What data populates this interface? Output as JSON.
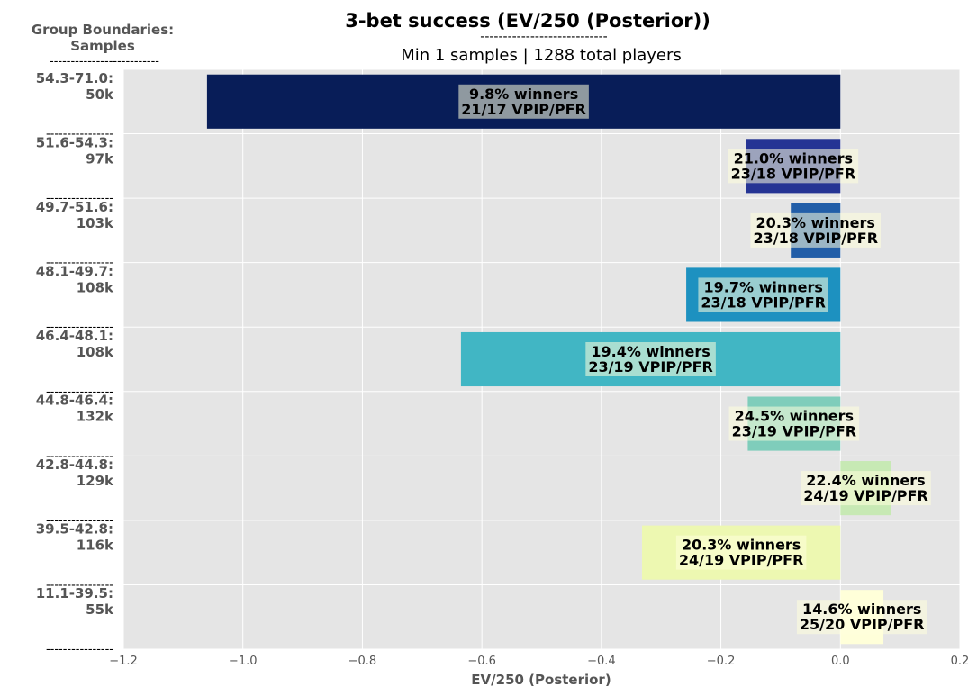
{
  "chart_data": {
    "type": "bar",
    "orientation": "horizontal",
    "title": "3-bet success (EV/250 (Posterior))",
    "title_separator": "----------------------------",
    "subtitle": "Min 1 samples | 1288 total players",
    "ylabel_header": "Group Boundaries:",
    "ylabel_header2": "Samples",
    "ylabel_separator": "--------------------------",
    "row_separator": "----------------",
    "xlabel": "EV/250 (Posterior)",
    "xlim": [
      -1.2,
      0.2
    ],
    "xticks": [
      "−1.2",
      "−1.0",
      "−0.8",
      "−0.6",
      "−0.4",
      "−0.2",
      "0.0",
      "0.2"
    ],
    "xtick_values": [
      -1.2,
      -1.0,
      -0.8,
      -0.6,
      -0.4,
      -0.2,
      0.0,
      0.2
    ],
    "grid": true,
    "categories": [
      {
        "range": "54.3-71.0:",
        "samples": "50k"
      },
      {
        "range": "51.6-54.3:",
        "samples": "97k"
      },
      {
        "range": "49.7-51.6:",
        "samples": "103k"
      },
      {
        "range": "48.1-49.7:",
        "samples": "108k"
      },
      {
        "range": "46.4-48.1:",
        "samples": "108k"
      },
      {
        "range": "44.8-46.4:",
        "samples": "132k"
      },
      {
        "range": "42.8-44.8:",
        "samples": "129k"
      },
      {
        "range": "39.5-42.8:",
        "samples": "116k"
      },
      {
        "range": "11.1-39.5:",
        "samples": "55k"
      }
    ],
    "values": [
      -1.06,
      -0.158,
      -0.083,
      -0.258,
      -0.635,
      -0.155,
      0.085,
      -0.332,
      0.072
    ],
    "colors": [
      "#081d58",
      "#253494",
      "#225ea8",
      "#1d91c0",
      "#41b6c4",
      "#7fcdbb",
      "#c7e9b4",
      "#edf8b1",
      "#ffffd9"
    ],
    "bar_labels": [
      [
        "9.8% winners",
        "21/17 VPIP/PFR"
      ],
      [
        "21.0% winners",
        "23/18 VPIP/PFR"
      ],
      [
        "20.3% winners",
        "23/18 VPIP/PFR"
      ],
      [
        "19.7% winners",
        "23/18 VPIP/PFR"
      ],
      [
        "19.4% winners",
        "23/19 VPIP/PFR"
      ],
      [
        "24.5% winners",
        "23/19 VPIP/PFR"
      ],
      [
        "22.4% winners",
        "24/19 VPIP/PFR"
      ],
      [
        "20.3% winners",
        "24/19 VPIP/PFR"
      ],
      [
        "14.6% winners",
        "25/20 VPIP/PFR"
      ]
    ],
    "plot_background": "#e5e5e5",
    "grid_color": "#ffffff",
    "label_box_color": "#ffffdc"
  }
}
